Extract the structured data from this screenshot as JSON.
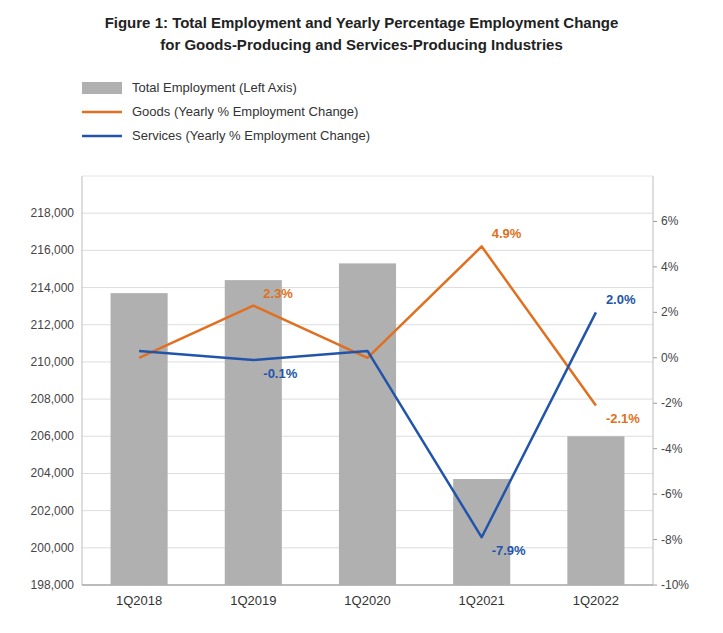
{
  "chart_data": {
    "type": "bar",
    "title": "Figure 1:  Total Employment and Yearly Percentage Employment Change",
    "subtitle": "for Goods-Producing and Services-Producing Industries",
    "categories": [
      "1Q2018",
      "1Q2019",
      "1Q2020",
      "1Q2021",
      "1Q2022"
    ],
    "series": [
      {
        "name": "Total Employment (Left Axis)",
        "type": "bar",
        "color": "#b0b0b0",
        "values": [
          213700,
          214400,
          215300,
          203700,
          206000
        ]
      },
      {
        "name": "Goods (Yearly % Employment Change)",
        "type": "line",
        "axis": "y2",
        "color": "#e07020",
        "values": [
          0.0,
          2.3,
          0.0,
          4.9,
          -2.1
        ],
        "value_labels": [
          null,
          "2.3%",
          null,
          "4.9%",
          "-2.1%"
        ]
      },
      {
        "name": "Services (Yearly % Employment Change)",
        "type": "line",
        "axis": "y2",
        "color": "#2255aa",
        "values": [
          0.3,
          -0.1,
          0.3,
          -7.9,
          2.0
        ],
        "value_labels": [
          null,
          "-0.1%",
          null,
          "-7.9%",
          "2.0%"
        ]
      }
    ],
    "ylim": [
      198000,
      220000
    ],
    "yticks": [
      {
        "value": 198000,
        "label": "198,000"
      },
      {
        "value": 200000,
        "label": "200,000"
      },
      {
        "value": 202000,
        "label": "202,000"
      },
      {
        "value": 204000,
        "label": "204,000"
      },
      {
        "value": 206000,
        "label": "206,000"
      },
      {
        "value": 208000,
        "label": "208,000"
      },
      {
        "value": 210000,
        "label": "210,000"
      },
      {
        "value": 212000,
        "label": "212,000"
      },
      {
        "value": 214000,
        "label": "214,000"
      },
      {
        "value": 216000,
        "label": "216,000"
      },
      {
        "value": 218000,
        "label": "218,000"
      }
    ],
    "y2lim": [
      -10,
      8
    ],
    "y2ticks": [
      {
        "value": -10,
        "label": "-10%"
      },
      {
        "value": -8,
        "label": "-8%"
      },
      {
        "value": -6,
        "label": "-6%"
      },
      {
        "value": -4,
        "label": "-4%"
      },
      {
        "value": -2,
        "label": "-2%"
      },
      {
        "value": 0,
        "label": "0%"
      },
      {
        "value": 2,
        "label": "2%"
      },
      {
        "value": 4,
        "label": "4%"
      },
      {
        "value": 6,
        "label": "6%"
      }
    ],
    "grid": true,
    "legend": "top"
  }
}
